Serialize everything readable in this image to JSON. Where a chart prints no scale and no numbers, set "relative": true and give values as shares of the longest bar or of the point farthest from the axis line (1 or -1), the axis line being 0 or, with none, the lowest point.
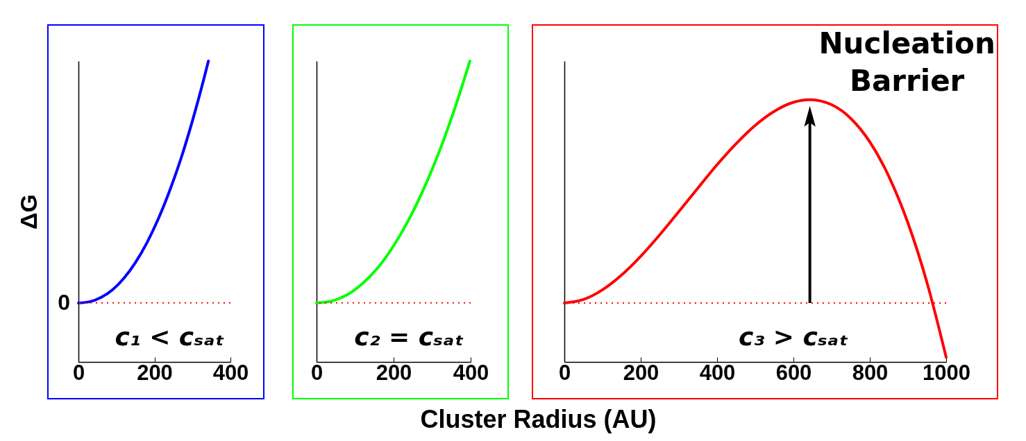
{
  "chart_data": [
    {
      "type": "line",
      "relative": true,
      "ylabel": "ΔG",
      "xlim": [
        0,
        400
      ],
      "xticks": [
        0,
        200,
        400
      ],
      "x": [
        0,
        30,
        60,
        90,
        120,
        150,
        180,
        210,
        240,
        270,
        300,
        330,
        342
      ],
      "series": [
        {
          "color": "#0000ff",
          "values": [
            0,
            0.005,
            0.023,
            0.055,
            0.103,
            0.167,
            0.248,
            0.347,
            0.464,
            0.598,
            0.753,
            0.926,
            1
          ]
        }
      ],
      "ref_lines": [
        {
          "axis": "y",
          "value": 0,
          "color": "#ff0000",
          "line_style": "dotted",
          "label": "0"
        }
      ],
      "annotations": [
        "c₁ < cₛₐₜ"
      ]
    },
    {
      "type": "line",
      "relative": true,
      "xlabel": "Cluster Radius (AU)",
      "xlim": [
        0,
        400
      ],
      "xticks": [
        0,
        200,
        400
      ],
      "x": [
        0,
        40,
        80,
        120,
        160,
        200,
        240,
        280,
        320,
        360,
        398
      ],
      "series": [
        {
          "color": "#00ff00",
          "values": [
            0,
            0.008,
            0.034,
            0.081,
            0.147,
            0.236,
            0.346,
            0.478,
            0.632,
            0.81,
            1
          ]
        }
      ],
      "ref_lines": [
        {
          "axis": "y",
          "value": 0,
          "color": "#ff0000",
          "line_style": "dotted"
        }
      ],
      "annotations": [
        "c₂ = cₛₐₜ"
      ]
    },
    {
      "type": "line",
      "relative": true,
      "xlim": [
        0,
        1000
      ],
      "xticks": [
        0,
        200,
        400,
        600,
        800,
        1000
      ],
      "x": [
        0,
        50,
        100,
        150,
        200,
        250,
        300,
        350,
        400,
        450,
        500,
        550,
        600,
        643,
        700,
        750,
        800,
        850,
        900,
        950,
        1000
      ],
      "series": [
        {
          "color": "#ff0000",
          "values": [
            0,
            0.017,
            0.065,
            0.138,
            0.23,
            0.336,
            0.45,
            0.566,
            0.68,
            0.784,
            0.874,
            0.943,
            0.987,
            1,
            0.975,
            0.908,
            0.792,
            0.622,
            0.393,
            0.099,
            -0.267
          ]
        }
      ],
      "ref_lines": [
        {
          "axis": "y",
          "value": 0,
          "color": "#ff0000",
          "line_style": "dotted"
        }
      ],
      "annotations": [
        "c₃ > cₛₐₜ",
        {
          "text": "Nucleation Barrier",
          "x": 643,
          "y": 1
        }
      ]
    }
  ]
}
